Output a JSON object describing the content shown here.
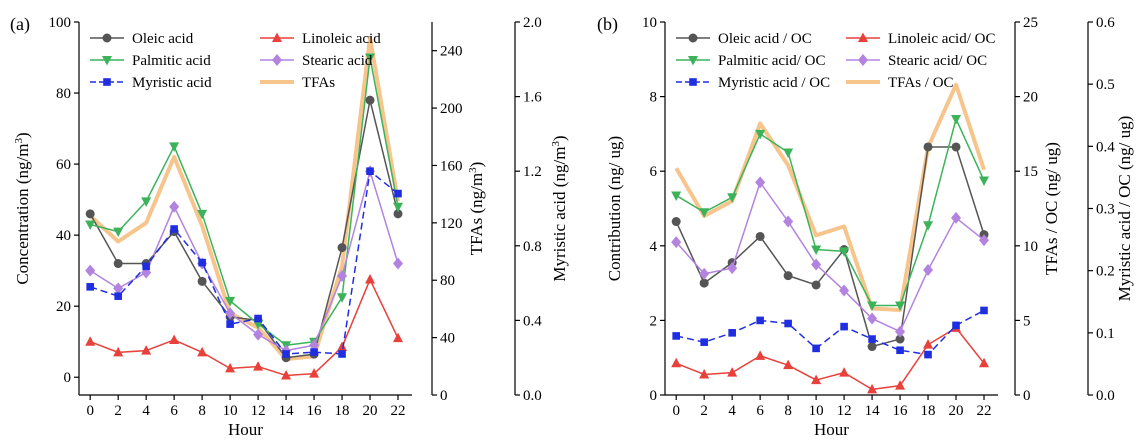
{
  "chart_data": [
    {
      "panel_label": "(a)",
      "type": "line",
      "xlabel": "Hour",
      "x": [
        0,
        2,
        4,
        6,
        8,
        10,
        12,
        14,
        16,
        18,
        20,
        22
      ],
      "xticks": [
        "0",
        "2",
        "4",
        "6",
        "8",
        "10",
        "12",
        "14",
        "16",
        "18",
        "20",
        "22"
      ],
      "xlim": [
        -0.8,
        23
      ],
      "axes": {
        "left": {
          "label_main": "Concentration (ng/m",
          "label_sup": "3",
          "label_end": ")",
          "lim": [
            -5,
            100
          ],
          "ticks": [
            "0",
            "20",
            "40",
            "60",
            "80",
            "100"
          ],
          "tick_values": [
            0,
            20,
            40,
            60,
            80,
            100
          ]
        },
        "right1": {
          "label_main": "TFAs (ng/m",
          "label_sup": "3",
          "label_end": ")",
          "lim": [
            0,
            260
          ],
          "ticks": [
            "0",
            "40",
            "80",
            "120",
            "160",
            "200",
            "240"
          ],
          "tick_values": [
            0,
            40,
            80,
            120,
            160,
            200,
            240
          ]
        },
        "right2": {
          "label_main": "Myristic acid (ng/m",
          "label_sup": "3",
          "label_end": ")",
          "lim": [
            0,
            2.0
          ],
          "ticks": [
            "0.0",
            "0.4",
            "0.8",
            "1.2",
            "1.6",
            "2.0"
          ],
          "tick_values": [
            0,
            0.4,
            0.8,
            1.2,
            1.6,
            2.0
          ]
        }
      },
      "series": [
        {
          "name": "Oleic acid",
          "axis": "left",
          "color": "#555555",
          "marker": "circle",
          "dash": false,
          "values": [
            46,
            32,
            32,
            41,
            27,
            17,
            16,
            5.5,
            6.5,
            36.5,
            78,
            46
          ]
        },
        {
          "name": "Linoleic acid",
          "axis": "left",
          "color": "#e8403a",
          "marker": "triangle-up",
          "dash": false,
          "values": [
            10,
            7,
            7.5,
            10.5,
            7,
            2.5,
            3,
            0.5,
            1,
            8.5,
            27.5,
            11
          ]
        },
        {
          "name": "Palmitic acid",
          "axis": "left",
          "color": "#3cb35a",
          "marker": "triangle-down",
          "dash": false,
          "values": [
            43,
            41,
            49.5,
            65,
            46,
            21.5,
            15,
            9,
            10,
            22.5,
            90,
            48
          ]
        },
        {
          "name": "Stearic acid",
          "axis": "left",
          "color": "#b383e0",
          "marker": "diamond",
          "dash": false,
          "values": [
            30,
            25,
            29.5,
            48,
            32,
            18,
            12,
            7.5,
            9,
            28.5,
            58,
            32
          ]
        },
        {
          "name": "Myristic acid",
          "axis": "right2",
          "color": "#1f2ee0",
          "marker": "square",
          "dash": true,
          "values": [
            0.58,
            0.53,
            0.69,
            0.89,
            0.71,
            0.38,
            0.41,
            0.22,
            0.23,
            0.22,
            1.2,
            1.08
          ]
        },
        {
          "name": "TFAs",
          "axis": "right1",
          "color": "#f7c48c",
          "marker": "none",
          "dash": false,
          "thick": true,
          "values": [
            125,
            107,
            120,
            166,
            118,
            57,
            47,
            25,
            27,
            90,
            249,
            135
          ]
        }
      ],
      "legend": [
        [
          "Oleic acid",
          "Linoleic acid"
        ],
        [
          "Palmitic acid",
          "Stearic acid"
        ],
        [
          "Myristic acid",
          "TFAs"
        ]
      ]
    },
    {
      "panel_label": "(b)",
      "type": "line",
      "xlabel": "Hour",
      "x": [
        0,
        2,
        4,
        6,
        8,
        10,
        12,
        14,
        16,
        18,
        20,
        22
      ],
      "xticks": [
        "0",
        "2",
        "4",
        "6",
        "8",
        "10",
        "12",
        "14",
        "16",
        "18",
        "20",
        "22"
      ],
      "xlim": [
        -0.8,
        23
      ],
      "axes": {
        "left": {
          "label_main": "Contribution (ng/ ug)",
          "label_sup": "",
          "label_end": "",
          "lim": [
            0,
            10
          ],
          "ticks": [
            "0",
            "2",
            "4",
            "6",
            "8",
            "10"
          ],
          "tick_values": [
            0,
            2,
            4,
            6,
            8,
            10
          ]
        },
        "right1": {
          "label_main": "TFAs / OC (ng/ ug)",
          "label_sup": "",
          "label_end": "",
          "lim": [
            0,
            25
          ],
          "ticks": [
            "0",
            "5",
            "10",
            "15",
            "20",
            "25"
          ],
          "tick_values": [
            0,
            5,
            10,
            15,
            20,
            25
          ]
        },
        "right2": {
          "label_main": "Myristic acid / OC (ng/ ug)",
          "label_sup": "",
          "label_end": "",
          "lim": [
            0,
            0.6
          ],
          "ticks": [
            "0.0",
            "0.1",
            "0.2",
            "0.3",
            "0.4",
            "0.5",
            "0.6"
          ],
          "tick_values": [
            0,
            0.1,
            0.2,
            0.3,
            0.4,
            0.5,
            0.6
          ]
        }
      },
      "series": [
        {
          "name": "Oleic acid / OC",
          "axis": "left",
          "color": "#555555",
          "marker": "circle",
          "dash": false,
          "values": [
            4.65,
            3.0,
            3.55,
            4.25,
            3.2,
            2.95,
            3.9,
            1.3,
            1.5,
            6.65,
            6.65,
            4.3
          ]
        },
        {
          "name": "Linoleic acid/ OC",
          "axis": "left",
          "color": "#e8403a",
          "marker": "triangle-up",
          "dash": false,
          "values": [
            0.85,
            0.55,
            0.6,
            1.05,
            0.8,
            0.4,
            0.6,
            0.15,
            0.25,
            1.35,
            1.8,
            0.85
          ]
        },
        {
          "name": "Palmitic acid/ OC",
          "axis": "left",
          "color": "#3cb35a",
          "marker": "triangle-down",
          "dash": false,
          "values": [
            5.35,
            4.9,
            5.3,
            7.0,
            6.5,
            3.9,
            3.85,
            2.4,
            2.4,
            4.55,
            7.4,
            5.75
          ]
        },
        {
          "name": "Stearic acid/ OC",
          "axis": "left",
          "color": "#b383e0",
          "marker": "diamond",
          "dash": false,
          "values": [
            4.1,
            3.25,
            3.4,
            5.7,
            4.65,
            3.5,
            2.8,
            2.05,
            1.7,
            3.35,
            4.75,
            4.15
          ]
        },
        {
          "name": "Myristic acid / OC",
          "axis": "right2",
          "color": "#1f2ee0",
          "marker": "square",
          "dash": true,
          "values": [
            0.095,
            0.085,
            0.1,
            0.12,
            0.115,
            0.075,
            0.11,
            0.09,
            0.072,
            0.065,
            0.112,
            0.136
          ]
        },
        {
          "name": "TFAs / OC",
          "axis": "right1",
          "color": "#f7c48c",
          "marker": "none",
          "dash": false,
          "thick": true,
          "values": [
            15.2,
            12.0,
            13.0,
            18.2,
            15.4,
            10.7,
            11.3,
            5.8,
            5.7,
            16.6,
            20.8,
            15.1
          ]
        }
      ],
      "legend": [
        [
          "Oleic acid / OC",
          "Linoleic acid/ OC"
        ],
        [
          "Palmitic acid/ OC",
          "Stearic acid/ OC"
        ],
        [
          "Myristic acid / OC",
          "TFAs / OC"
        ]
      ]
    }
  ]
}
